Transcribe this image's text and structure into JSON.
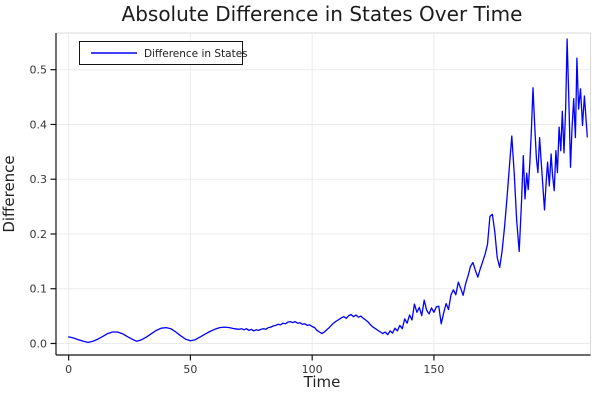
{
  "figure": {
    "background": "#ffffff"
  },
  "chart_data": {
    "type": "line",
    "title": "Absolute Difference in States Over Time",
    "xlabel": "Time",
    "ylabel": "Difference",
    "grid": true,
    "legend": {
      "position": "top-left",
      "entries": [
        "Difference in States"
      ]
    },
    "xlim": [
      -5.2,
      214.3
    ],
    "ylim": [
      -0.021,
      0.567
    ],
    "x_ticks": [
      0,
      50,
      100,
      150
    ],
    "x_tick_labels": [
      "0",
      "50",
      "100",
      "150"
    ],
    "y_ticks": [
      0.0,
      0.1,
      0.2,
      0.3,
      0.4,
      0.5
    ],
    "y_tick_labels": [
      "0.0",
      "0.1",
      "0.2",
      "0.3",
      "0.4",
      "0.5"
    ],
    "colors": {
      "series": "#0000FF",
      "grid": "#ebebeb",
      "spine": "#131313",
      "border": "#d8d8d8",
      "title_text": "#1c1c1c",
      "tick_text": "#363636",
      "label_text": "#222222",
      "legend_border": "#131313",
      "legend_bg": "#ffffff"
    },
    "series": [
      {
        "name": "Difference in States",
        "color": "#0000FF",
        "points": [
          [
            0,
            0.012
          ],
          [
            2,
            0.01
          ],
          [
            4,
            0.007
          ],
          [
            6,
            0.004
          ],
          [
            8,
            0.002
          ],
          [
            10,
            0.004
          ],
          [
            12,
            0.008
          ],
          [
            14,
            0.013
          ],
          [
            16,
            0.018
          ],
          [
            18,
            0.021
          ],
          [
            20,
            0.021
          ],
          [
            22,
            0.018
          ],
          [
            24,
            0.013
          ],
          [
            26,
            0.008
          ],
          [
            28,
            0.004
          ],
          [
            30,
            0.007
          ],
          [
            32,
            0.012
          ],
          [
            34,
            0.018
          ],
          [
            36,
            0.024
          ],
          [
            38,
            0.028
          ],
          [
            40,
            0.029
          ],
          [
            42,
            0.027
          ],
          [
            44,
            0.021
          ],
          [
            46,
            0.014
          ],
          [
            48,
            0.008
          ],
          [
            50,
            0.005
          ],
          [
            52,
            0.007
          ],
          [
            54,
            0.012
          ],
          [
            56,
            0.017
          ],
          [
            58,
            0.022
          ],
          [
            60,
            0.026
          ],
          [
            62,
            0.029
          ],
          [
            64,
            0.03
          ],
          [
            66,
            0.029
          ],
          [
            68,
            0.027
          ],
          [
            70,
            0.026
          ],
          [
            71,
            0.027
          ],
          [
            72,
            0.025
          ],
          [
            73,
            0.027
          ],
          [
            74,
            0.024
          ],
          [
            75,
            0.026
          ],
          [
            76,
            0.023
          ],
          [
            77,
            0.025
          ],
          [
            78,
            0.024
          ],
          [
            79,
            0.026
          ],
          [
            80,
            0.027
          ],
          [
            81,
            0.026
          ],
          [
            82,
            0.029
          ],
          [
            83,
            0.03
          ],
          [
            84,
            0.032
          ],
          [
            85,
            0.033
          ],
          [
            86,
            0.035
          ],
          [
            87,
            0.034
          ],
          [
            88,
            0.037
          ],
          [
            89,
            0.036
          ],
          [
            90,
            0.039
          ],
          [
            91,
            0.04
          ],
          [
            92,
            0.038
          ],
          [
            93,
            0.04
          ],
          [
            94,
            0.037
          ],
          [
            95,
            0.038
          ],
          [
            96,
            0.035
          ],
          [
            97,
            0.036
          ],
          [
            98,
            0.033
          ],
          [
            99,
            0.034
          ],
          [
            100,
            0.031
          ],
          [
            101,
            0.029
          ],
          [
            102,
            0.024
          ],
          [
            103,
            0.021
          ],
          [
            104,
            0.018
          ],
          [
            105,
            0.021
          ],
          [
            106,
            0.025
          ],
          [
            107,
            0.029
          ],
          [
            108,
            0.034
          ],
          [
            109,
            0.038
          ],
          [
            110,
            0.041
          ],
          [
            111,
            0.044
          ],
          [
            112,
            0.047
          ],
          [
            113,
            0.049
          ],
          [
            114,
            0.046
          ],
          [
            115,
            0.051
          ],
          [
            116,
            0.053
          ],
          [
            117,
            0.049
          ],
          [
            118,
            0.052
          ],
          [
            119,
            0.048
          ],
          [
            120,
            0.05
          ],
          [
            121,
            0.046
          ],
          [
            122,
            0.043
          ],
          [
            123,
            0.039
          ],
          [
            124,
            0.034
          ],
          [
            125,
            0.03
          ],
          [
            126,
            0.027
          ],
          [
            127,
            0.024
          ],
          [
            128,
            0.021
          ],
          [
            129,
            0.018
          ],
          [
            130,
            0.021
          ],
          [
            131,
            0.016
          ],
          [
            132,
            0.023
          ],
          [
            133,
            0.019
          ],
          [
            134,
            0.028
          ],
          [
            135,
            0.023
          ],
          [
            136,
            0.033
          ],
          [
            137,
            0.027
          ],
          [
            138,
            0.045
          ],
          [
            139,
            0.037
          ],
          [
            140,
            0.052
          ],
          [
            141,
            0.043
          ],
          [
            142,
            0.072
          ],
          [
            143,
            0.057
          ],
          [
            144,
            0.066
          ],
          [
            145,
            0.051
          ],
          [
            146,
            0.079
          ],
          [
            147,
            0.061
          ],
          [
            148,
            0.054
          ],
          [
            149,
            0.065
          ],
          [
            150,
            0.057
          ],
          [
            151,
            0.067
          ],
          [
            152,
            0.068
          ],
          [
            153,
            0.036
          ],
          [
            154,
            0.056
          ],
          [
            155,
            0.073
          ],
          [
            156,
            0.062
          ],
          [
            157,
            0.089
          ],
          [
            158,
            0.098
          ],
          [
            159,
            0.089
          ],
          [
            160,
            0.112
          ],
          [
            161,
            0.101
          ],
          [
            162,
            0.088
          ],
          [
            163,
            0.109
          ],
          [
            164,
            0.123
          ],
          [
            165,
            0.141
          ],
          [
            166,
            0.148
          ],
          [
            167,
            0.134
          ],
          [
            168,
            0.121
          ],
          [
            169,
            0.136
          ],
          [
            170,
            0.149
          ],
          [
            171,
            0.163
          ],
          [
            172,
            0.181
          ],
          [
            173,
            0.232
          ],
          [
            174,
            0.236
          ],
          [
            175,
            0.204
          ],
          [
            176,
            0.157
          ],
          [
            177,
            0.139
          ],
          [
            178,
            0.169
          ],
          [
            179,
            0.212
          ],
          [
            180,
            0.266
          ],
          [
            181,
            0.323
          ],
          [
            182,
            0.379
          ],
          [
            183,
            0.308
          ],
          [
            184,
            0.224
          ],
          [
            185,
            0.168
          ],
          [
            186,
            0.262
          ],
          [
            186.7,
            0.343
          ],
          [
            187.4,
            0.264
          ],
          [
            188.1,
            0.311
          ],
          [
            188.7,
            0.281
          ],
          [
            189.4,
            0.331
          ],
          [
            190,
            0.386
          ],
          [
            190.7,
            0.467
          ],
          [
            191.4,
            0.398
          ],
          [
            192.1,
            0.338
          ],
          [
            192.7,
            0.312
          ],
          [
            193.4,
            0.376
          ],
          [
            194.1,
            0.329
          ],
          [
            194.7,
            0.289
          ],
          [
            195.4,
            0.244
          ],
          [
            196.1,
            0.296
          ],
          [
            196.7,
            0.331
          ],
          [
            197.4,
            0.288
          ],
          [
            198.1,
            0.346
          ],
          [
            198.7,
            0.308
          ],
          [
            199.4,
            0.279
          ],
          [
            200.1,
            0.352
          ],
          [
            200.7,
            0.312
          ],
          [
            201.4,
            0.395
          ],
          [
            202.1,
            0.352
          ],
          [
            202.7,
            0.424
          ],
          [
            203.4,
            0.348
          ],
          [
            204.1,
            0.432
          ],
          [
            204.7,
            0.556
          ],
          [
            205.4,
            0.448
          ],
          [
            206.1,
            0.322
          ],
          [
            206.7,
            0.392
          ],
          [
            207.4,
            0.447
          ],
          [
            208.1,
            0.376
          ],
          [
            208.7,
            0.521
          ],
          [
            209.4,
            0.428
          ],
          [
            210.2,
            0.465
          ],
          [
            211,
            0.398
          ],
          [
            211.8,
            0.452
          ],
          [
            213,
            0.377
          ]
        ]
      }
    ]
  }
}
